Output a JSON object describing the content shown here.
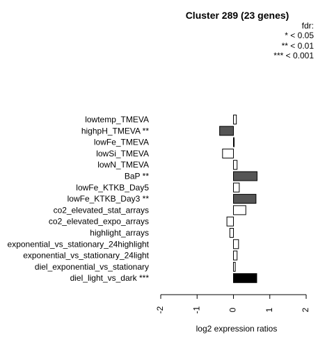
{
  "chart_data": {
    "type": "bar",
    "orientation": "horizontal",
    "title": "Cluster 289 (23 genes)",
    "xlabel": "log2 expression ratios",
    "ylabel": "",
    "xlim": [
      -2,
      2
    ],
    "xticks": [
      -2,
      -1,
      0,
      1,
      2
    ],
    "xtick_labels": [
      "-2",
      "-1",
      "0",
      "1",
      "2"
    ],
    "legend": {
      "title": "fdr:",
      "entries": [
        "* < 0.05",
        "** < 0.01",
        "*** < 0.001"
      ],
      "position": "top-right"
    },
    "categories": [
      "lowtemp_TMEVA",
      "highpH_TMEVA **",
      "lowFe_TMEVA",
      "lowSi_TMEVA",
      "lowN_TMEVA",
      "BaP **",
      "lowFe_KTKB_Day5",
      "lowFe_KTKB_Day3 **",
      "co2_elevated_stat_arrays",
      "co2_elevated_expo_arrays",
      "highlight_arrays",
      "exponential_vs_stationary_24highlight",
      "exponential_vs_stationary_24light",
      "diel_exponential_vs_stationary",
      "diel_light_vs_dark ***"
    ],
    "values": [
      0.08,
      -0.38,
      0.02,
      -0.3,
      0.1,
      0.65,
      0.16,
      0.62,
      0.34,
      -0.18,
      -0.1,
      0.14,
      0.1,
      0.05,
      0.64
    ],
    "bar_colors": [
      "#ffffff",
      "#555555",
      "#ffffff",
      "#ffffff",
      "#ffffff",
      "#555555",
      "#ffffff",
      "#555555",
      "#ffffff",
      "#ffffff",
      "#ffffff",
      "#ffffff",
      "#ffffff",
      "#ffffff",
      "#000000"
    ],
    "grid": false
  }
}
